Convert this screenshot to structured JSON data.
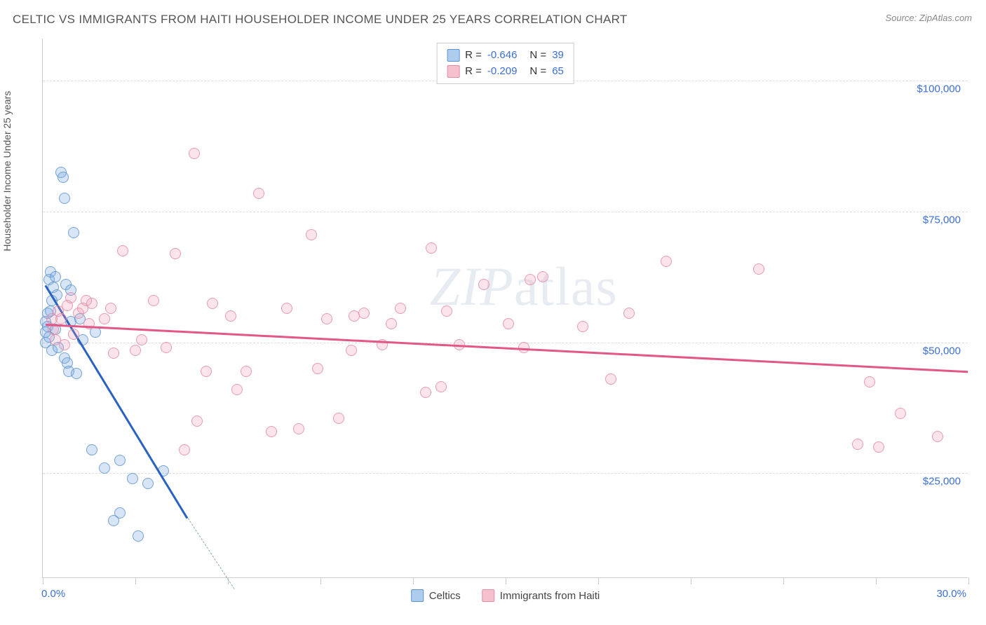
{
  "title": "CELTIC VS IMMIGRANTS FROM HAITI HOUSEHOLDER INCOME UNDER 25 YEARS CORRELATION CHART",
  "source": "Source: ZipAtlas.com",
  "watermark": "ZIPatlas",
  "chart": {
    "type": "scatter",
    "ylabel": "Householder Income Under 25 years",
    "xlim": [
      0,
      30
    ],
    "ylim": [
      5000,
      108000
    ],
    "ygrid": [
      25000,
      50000,
      75000,
      100000
    ],
    "ygrid_labels": [
      "$25,000",
      "$50,000",
      "$75,000",
      "$100,000"
    ],
    "xticks": [
      0,
      3,
      6,
      9,
      12,
      15,
      18,
      21,
      24,
      27,
      30
    ],
    "xlabel_min": "0.0%",
    "xlabel_max": "30.0%",
    "grid_color": "#dddddd",
    "axis_color": "#cccccc",
    "background_color": "#ffffff",
    "label_fontsize": 14,
    "tick_color": "#3b6fd4",
    "marker_radius": 8,
    "series": [
      {
        "name": "Celtics",
        "color_fill": "rgba(120,170,225,0.35)",
        "color_stroke": "#5a93cf",
        "trend_color": "#2a62c2",
        "R": -0.646,
        "N": 39,
        "trend": {
          "x0": 0.1,
          "y0": 61000,
          "x1": 4.7,
          "y1": 16500,
          "dash_to_x": 6.2,
          "dash_to_y": 3000
        },
        "points": [
          [
            0.1,
            54000
          ],
          [
            0.1,
            52000
          ],
          [
            0.1,
            50000
          ],
          [
            0.15,
            53000
          ],
          [
            0.15,
            55500
          ],
          [
            0.2,
            62000
          ],
          [
            0.2,
            51000
          ],
          [
            0.25,
            56000
          ],
          [
            0.25,
            63500
          ],
          [
            0.3,
            58000
          ],
          [
            0.3,
            48500
          ],
          [
            0.35,
            60500
          ],
          [
            0.4,
            62500
          ],
          [
            0.4,
            52500
          ],
          [
            0.45,
            59000
          ],
          [
            0.5,
            49000
          ],
          [
            0.6,
            82500
          ],
          [
            0.65,
            81500
          ],
          [
            0.7,
            47000
          ],
          [
            0.7,
            77500
          ],
          [
            0.75,
            61000
          ],
          [
            0.8,
            46000
          ],
          [
            0.85,
            44500
          ],
          [
            0.9,
            54000
          ],
          [
            0.9,
            60000
          ],
          [
            1.0,
            71000
          ],
          [
            1.1,
            44000
          ],
          [
            1.2,
            54500
          ],
          [
            1.3,
            50500
          ],
          [
            1.6,
            29500
          ],
          [
            1.7,
            52000
          ],
          [
            2.0,
            26000
          ],
          [
            2.3,
            16000
          ],
          [
            2.5,
            27500
          ],
          [
            2.5,
            17500
          ],
          [
            2.9,
            24000
          ],
          [
            3.1,
            13000
          ],
          [
            3.4,
            23000
          ],
          [
            3.9,
            25500
          ]
        ]
      },
      {
        "name": "Immigrants from Haiti",
        "color_fill": "rgba(240,150,175,0.30)",
        "color_stroke": "#e58aa5",
        "trend_color": "#e35788",
        "R": -0.209,
        "N": 65,
        "trend": {
          "x0": 0.1,
          "y0": 53500,
          "x1": 30.0,
          "y1": 44500
        },
        "points": [
          [
            0.3,
            54500
          ],
          [
            0.35,
            52500
          ],
          [
            0.4,
            50500
          ],
          [
            0.5,
            56000
          ],
          [
            0.6,
            54500
          ],
          [
            0.7,
            49500
          ],
          [
            0.8,
            57000
          ],
          [
            0.9,
            58500
          ],
          [
            1.0,
            51500
          ],
          [
            1.15,
            55500
          ],
          [
            1.3,
            56500
          ],
          [
            1.4,
            58000
          ],
          [
            1.5,
            53500
          ],
          [
            1.6,
            57500
          ],
          [
            2.0,
            54500
          ],
          [
            2.2,
            56500
          ],
          [
            2.3,
            48000
          ],
          [
            2.6,
            67500
          ],
          [
            3.0,
            48500
          ],
          [
            3.2,
            50500
          ],
          [
            3.6,
            58000
          ],
          [
            4.0,
            49000
          ],
          [
            4.3,
            67000
          ],
          [
            4.6,
            29500
          ],
          [
            4.9,
            86000
          ],
          [
            5.3,
            44500
          ],
          [
            5.5,
            57500
          ],
          [
            6.1,
            55000
          ],
          [
            6.3,
            41000
          ],
          [
            6.6,
            44500
          ],
          [
            7.0,
            78500
          ],
          [
            7.4,
            33000
          ],
          [
            7.9,
            56500
          ],
          [
            8.3,
            33500
          ],
          [
            8.7,
            70500
          ],
          [
            8.9,
            45000
          ],
          [
            9.2,
            54500
          ],
          [
            9.6,
            35500
          ],
          [
            10.0,
            48500
          ],
          [
            10.1,
            55000
          ],
          [
            10.4,
            55500
          ],
          [
            11.0,
            49500
          ],
          [
            11.3,
            53500
          ],
          [
            11.6,
            56500
          ],
          [
            12.4,
            40500
          ],
          [
            12.6,
            68000
          ],
          [
            12.9,
            41500
          ],
          [
            13.5,
            49500
          ],
          [
            14.3,
            61000
          ],
          [
            15.1,
            53500
          ],
          [
            15.6,
            49000
          ],
          [
            15.8,
            62000
          ],
          [
            16.2,
            62500
          ],
          [
            17.5,
            53000
          ],
          [
            18.4,
            43000
          ],
          [
            20.2,
            65500
          ],
          [
            23.2,
            64000
          ],
          [
            26.8,
            42500
          ],
          [
            27.1,
            30000
          ],
          [
            27.8,
            36500
          ],
          [
            29.0,
            32000
          ],
          [
            26.4,
            30500
          ],
          [
            19.0,
            55500
          ],
          [
            13.1,
            56000
          ],
          [
            5.0,
            35000
          ]
        ]
      }
    ],
    "legend_top": [
      {
        "swatch": "blue",
        "R": "-0.646",
        "N": "39"
      },
      {
        "swatch": "pink",
        "R": "-0.209",
        "N": "65"
      }
    ],
    "legend_bottom": [
      {
        "swatch": "blue",
        "label": "Celtics"
      },
      {
        "swatch": "pink",
        "label": "Immigrants from Haiti"
      }
    ]
  }
}
